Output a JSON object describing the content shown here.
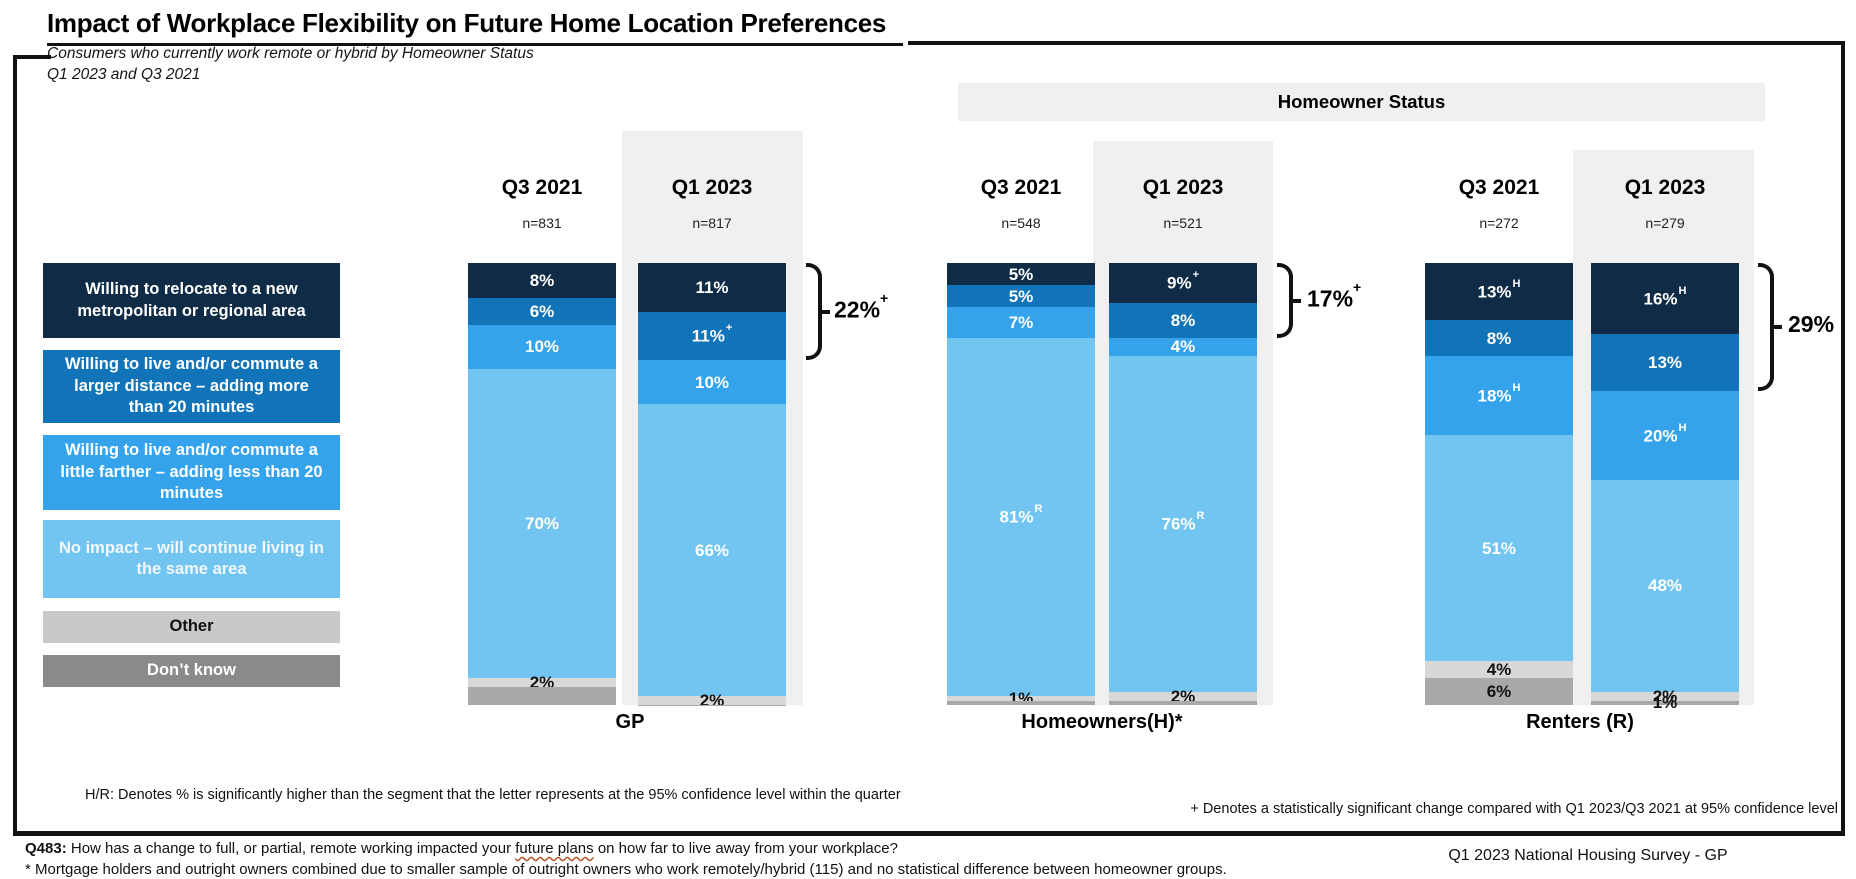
{
  "title": "Impact of Workplace Flexibility on Future Home Location Preferences",
  "subtitle": {
    "line1": "Consumers who currently work remote or hybrid by Homeowner Status",
    "line2": "Q1 2023 and Q3 2021"
  },
  "header_band_label": "Homeowner Status",
  "colors": {
    "navy": "#0F2B46",
    "blue": "#1274B8",
    "skyblue": "#34A3EC",
    "lightblue": "#72C5F1",
    "bar_other": "#D8D8D8",
    "bar_dontknow": "#A9A9A9",
    "band": "#F0F0F0",
    "frame": "#121212"
  },
  "legend": [
    {
      "key": "relocate",
      "label": "Willing to relocate to a new metropolitan or regional area",
      "swatch": "#0F2B46",
      "text_color": "#FFFFFF"
    },
    {
      "key": "larger",
      "label": "Willing to live and/or commute a larger distance – adding more than 20 minutes",
      "swatch": "#1274B8",
      "text_color": "#FFFFFF"
    },
    {
      "key": "little",
      "label": "Willing to live and/or commute a little farther – adding less than 20 minutes",
      "swatch": "#34A3EC",
      "text_color": "#FFFFFF"
    },
    {
      "key": "noimpact",
      "label": "No impact – will continue living in the same area",
      "swatch": "#72C5F1",
      "text_color": "#F2F8FD"
    },
    {
      "key": "other",
      "label": "Other",
      "swatch": "#C9C9C9",
      "text_color": "#111111"
    },
    {
      "key": "dontknow",
      "label": "Don’t know",
      "swatch": "#8A8A8A",
      "text_color": "#FFFFFF"
    }
  ],
  "chart_data": {
    "type": "bar",
    "stacked": true,
    "unit": "percent",
    "categories": [
      "Q3 2021",
      "Q1 2023"
    ],
    "groups": [
      {
        "name": "GP",
        "bracket": {
          "label": "22%",
          "sup": "+",
          "covers_pct": 22
        },
        "columns": [
          {
            "period": "Q3 2021",
            "n": "n=831",
            "highlighted": false,
            "segments": [
              {
                "key": "relocate",
                "value": 8,
                "label": "8%",
                "sup": ""
              },
              {
                "key": "larger",
                "value": 6,
                "label": "6%",
                "sup": ""
              },
              {
                "key": "little",
                "value": 10,
                "label": "10%",
                "sup": ""
              },
              {
                "key": "noimpact",
                "value": 70,
                "label": "70%",
                "sup": ""
              },
              {
                "key": "other",
                "value": 2,
                "label": "2%",
                "sup": ""
              },
              {
                "key": "dontknow",
                "value": 2,
                "label": "",
                "sup": ""
              }
            ]
          },
          {
            "period": "Q1 2023",
            "n": "n=817",
            "highlighted": true,
            "segments": [
              {
                "key": "relocate",
                "value": 11,
                "label": "11%",
                "sup": ""
              },
              {
                "key": "larger",
                "value": 11,
                "label": "11%",
                "sup": "+"
              },
              {
                "key": "little",
                "value": 10,
                "label": "10%",
                "sup": ""
              },
              {
                "key": "noimpact",
                "value": 66,
                "label": "66%",
                "sup": ""
              },
              {
                "key": "other",
                "value": 2,
                "label": "2%",
                "sup": ""
              },
              {
                "key": "dontknow",
                "value": 1,
                "label": "",
                "sup": ""
              }
            ]
          }
        ]
      },
      {
        "name": "Homeowners(H)*",
        "bracket": {
          "label": "17%",
          "sup": "+",
          "covers_pct": 17
        },
        "columns": [
          {
            "period": "Q3 2021",
            "n": "n=548",
            "highlighted": false,
            "segments": [
              {
                "key": "relocate",
                "value": 5,
                "label": "5%",
                "sup": ""
              },
              {
                "key": "larger",
                "value": 5,
                "label": "5%",
                "sup": ""
              },
              {
                "key": "little",
                "value": 7,
                "label": "7%",
                "sup": ""
              },
              {
                "key": "noimpact",
                "value": 81,
                "label": "81%",
                "sup": "R"
              },
              {
                "key": "other",
                "value": 1,
                "label": "1%",
                "sup": ""
              },
              {
                "key": "dontknow",
                "value": 1,
                "label": "",
                "sup": ""
              }
            ]
          },
          {
            "period": "Q1 2023",
            "n": "n=521",
            "highlighted": true,
            "segments": [
              {
                "key": "relocate",
                "value": 9,
                "label": "9%",
                "sup": "+"
              },
              {
                "key": "larger",
                "value": 8,
                "label": "8%",
                "sup": ""
              },
              {
                "key": "little",
                "value": 4,
                "label": "4%",
                "sup": ""
              },
              {
                "key": "noimpact",
                "value": 76,
                "label": "76%",
                "sup": "R"
              },
              {
                "key": "other",
                "value": 2,
                "label": "2%",
                "sup": ""
              },
              {
                "key": "dontknow",
                "value": 1,
                "label": "",
                "sup": ""
              }
            ]
          }
        ]
      },
      {
        "name": "Renters (R)",
        "bracket": {
          "label": "29%",
          "sup": "",
          "covers_pct": 29
        },
        "columns": [
          {
            "period": "Q3 2021",
            "n": "n=272",
            "highlighted": false,
            "segments": [
              {
                "key": "relocate",
                "value": 13,
                "label": "13%",
                "sup": "H"
              },
              {
                "key": "larger",
                "value": 8,
                "label": "8%",
                "sup": ""
              },
              {
                "key": "little",
                "value": 18,
                "label": "18%",
                "sup": "H"
              },
              {
                "key": "noimpact",
                "value": 51,
                "label": "51%",
                "sup": ""
              },
              {
                "key": "other",
                "value": 4,
                "label": "4%",
                "sup": ""
              },
              {
                "key": "dontknow",
                "value": 6,
                "label": "6%",
                "sup": ""
              }
            ]
          },
          {
            "period": "Q1 2023",
            "n": "n=279",
            "highlighted": true,
            "segments": [
              {
                "key": "relocate",
                "value": 16,
                "label": "16%",
                "sup": "H"
              },
              {
                "key": "larger",
                "value": 13,
                "label": "13%",
                "sup": ""
              },
              {
                "key": "little",
                "value": 20,
                "label": "20%",
                "sup": "H"
              },
              {
                "key": "noimpact",
                "value": 48,
                "label": "48%",
                "sup": ""
              },
              {
                "key": "other",
                "value": 2,
                "label": "2%",
                "sup": ""
              },
              {
                "key": "dontknow",
                "value": 1,
                "label": "1%",
                "sup": ""
              }
            ]
          }
        ]
      }
    ]
  },
  "footnotes": {
    "hr_note": "H/R: Denotes % is significantly higher than the segment that the letter represents at the 95% confidence level within the quarter",
    "plus_note": "+ Denotes a statistically significant change compared with Q1 2023/Q3 2021 at 95% confidence level",
    "q483_label": "Q483:",
    "q483_pre": " How has a change to full, or partial, remote working impacted your ",
    "q483_wavy": "future plans",
    "q483_post": " on how far to live away from your workplace?",
    "mortgage_note": "* Mortgage holders and outright owners combined due to smaller sample of outright owners who work remotely/hybrid (115) and no statistical difference between homeowner groups.",
    "source": "Q1 2023 National Housing Survey - GP"
  }
}
